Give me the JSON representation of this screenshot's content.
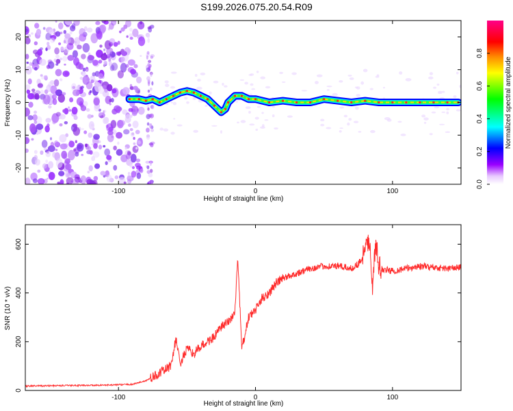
{
  "page_title": "S199.2026.075.20.54.R09",
  "chart_data": [
    {
      "type": "heatmap",
      "title": "S199.2026.075.20.54.R09",
      "xlabel": "Height of straight line (km)",
      "ylabel": "Frequency (Hz)",
      "xlim": [
        -168,
        150
      ],
      "ylim": [
        -25,
        25
      ],
      "xticks": [
        -100,
        0,
        100
      ],
      "xtick_labels": [
        "-100",
        "0",
        "100"
      ],
      "yticks": [
        -20,
        -10,
        0,
        10,
        20
      ],
      "ytick_labels": [
        "-20",
        "-10",
        "0",
        "10",
        "20"
      ],
      "colorbar": {
        "label": "Normalized spectral amplitude",
        "range": [
          0,
          1
        ],
        "ticks": [
          0.0,
          0.2,
          0.4,
          0.6,
          0.8
        ],
        "tick_labels": [
          "0.0",
          "0.2",
          "0.4",
          "0.6",
          "0.8"
        ],
        "colors": [
          "#ffffff",
          "#d9a6ff",
          "#8800ff",
          "#0000ff",
          "#00ffff",
          "#00ff00",
          "#ffff00",
          "#ff8800",
          "#ff0000",
          "#ff0088"
        ]
      },
      "ridge_line": {
        "x": [
          -92,
          -85,
          -80,
          -75,
          -70,
          -65,
          -60,
          -55,
          -50,
          -45,
          -40,
          -35,
          -30,
          -25,
          -22,
          -20,
          -15,
          -10,
          -5,
          0,
          10,
          20,
          30,
          40,
          50,
          60,
          70,
          80,
          90,
          100,
          110,
          120,
          130,
          140,
          148
        ],
        "y": [
          1,
          1,
          0.5,
          1,
          0,
          1,
          2,
          3,
          3.5,
          3,
          2,
          1,
          -1,
          -3,
          -2,
          0,
          2,
          2,
          1,
          1,
          0,
          0.5,
          0,
          0,
          1,
          0.5,
          0,
          0.5,
          0,
          0,
          0,
          0,
          0,
          0,
          0
        ]
      },
      "noise_region_x": [
        -168,
        -75
      ]
    },
    {
      "type": "line",
      "title": "",
      "xlabel": "Height of straight line (km)",
      "ylabel": "SNR (10 * v/v)",
      "xlim": [
        -168,
        150
      ],
      "ylim": [
        0,
        680
      ],
      "xticks": [
        -100,
        0,
        100
      ],
      "xtick_labels": [
        "-100",
        "0",
        "100"
      ],
      "yticks": [
        0,
        200,
        400,
        600
      ],
      "ytick_labels": [
        "0",
        "200",
        "400",
        "600"
      ],
      "color": "#ff2a2a",
      "series": [
        {
          "name": "SNR",
          "x": [
            -168,
            -140,
            -110,
            -90,
            -80,
            -70,
            -62,
            -58,
            -55,
            -50,
            -45,
            -40,
            -35,
            -30,
            -25,
            -20,
            -15,
            -13,
            -10,
            -5,
            0,
            5,
            10,
            15,
            20,
            30,
            40,
            50,
            60,
            70,
            75,
            80,
            83,
            85,
            88,
            90,
            100,
            110,
            120,
            130,
            140,
            150
          ],
          "y": [
            18,
            20,
            22,
            25,
            40,
            70,
            100,
            210,
            110,
            170,
            150,
            180,
            200,
            220,
            260,
            280,
            320,
            550,
            170,
            300,
            330,
            380,
            400,
            440,
            460,
            480,
            500,
            510,
            510,
            500,
            520,
            560,
            640,
            420,
            600,
            500,
            490,
            500,
            510,
            505,
            500,
            505
          ]
        }
      ]
    }
  ]
}
